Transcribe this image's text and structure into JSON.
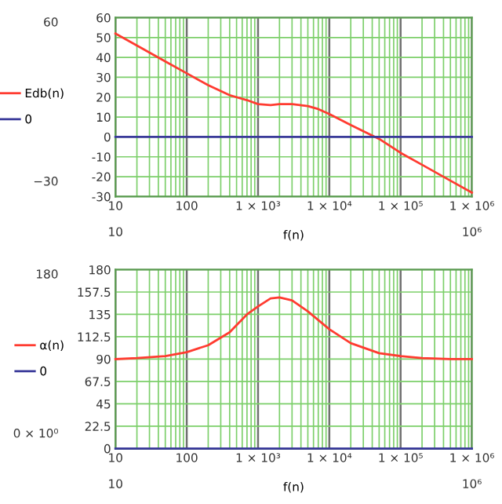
{
  "chart_data": [
    {
      "type": "line",
      "xlabel": "f(n)",
      "log": "x",
      "grid": true,
      "legend": "left",
      "xlim": [
        10,
        1000000
      ],
      "xticks": [
        10,
        100,
        {
          "value": 1000,
          "label": "1 × 10³"
        },
        {
          "value": 10000,
          "label": "1 × 10⁴"
        },
        {
          "value": 100000,
          "label": "1 × 10⁵"
        },
        {
          "value": 1000000,
          "label": "1 × 10⁶"
        }
      ],
      "ylim": [
        -30,
        60
      ],
      "yticks": [
        -30,
        -20,
        -10,
        0,
        10,
        20,
        30,
        40,
        50,
        60
      ],
      "annotations": [
        "60",
        "−30",
        "10",
        "10⁶"
      ],
      "series": [
        {
          "name": "Edb(n)",
          "color": "#ff3b30",
          "x": [
            10,
            20,
            50,
            100,
            200,
            400,
            700,
            1000,
            1500,
            2000,
            3000,
            5000,
            7000,
            10000,
            20000,
            50000,
            100000,
            200000,
            500000,
            1000000
          ],
          "values": [
            52,
            46,
            38,
            32,
            26,
            21,
            18.5,
            16.5,
            16,
            16.5,
            16.5,
            15.5,
            14,
            11.5,
            6,
            -1,
            -8,
            -14,
            -22,
            -28
          ]
        },
        {
          "name": "0",
          "color": "#3a3a9a",
          "x": [
            10,
            1000000
          ],
          "values": [
            0,
            0
          ]
        }
      ]
    },
    {
      "type": "line",
      "xlabel": "f(n)",
      "log": "x",
      "grid": true,
      "legend": "left",
      "xlim": [
        10,
        1000000
      ],
      "xticks": [
        10,
        100,
        {
          "value": 1000,
          "label": "1 × 10³"
        },
        {
          "value": 10000,
          "label": "1 × 10⁴"
        },
        {
          "value": 100000,
          "label": "1 × 10⁵"
        },
        {
          "value": 1000000,
          "label": "1 × 10⁶"
        }
      ],
      "ylim": [
        0,
        180
      ],
      "yticks": [
        0,
        22.5,
        45,
        67.5,
        90,
        112.5,
        135,
        157.5,
        180
      ],
      "annotations": [
        "180",
        "0 × 10⁰",
        "10",
        "10⁶"
      ],
      "series": [
        {
          "name": "α(n)",
          "color": "#ff3b30",
          "x": [
            10,
            20,
            50,
            100,
            200,
            400,
            700,
            1000,
            1500,
            2000,
            3000,
            5000,
            10000,
            20000,
            50000,
            100000,
            200000,
            500000,
            1000000
          ],
          "values": [
            90,
            91,
            93,
            97,
            104,
            117,
            135,
            143,
            151,
            152,
            149,
            138,
            120,
            106,
            96,
            93,
            91,
            90,
            90
          ]
        },
        {
          "name": "0",
          "color": "#3a3a9a",
          "x": [
            10,
            1000000
          ],
          "values": [
            0,
            0
          ]
        }
      ]
    }
  ]
}
